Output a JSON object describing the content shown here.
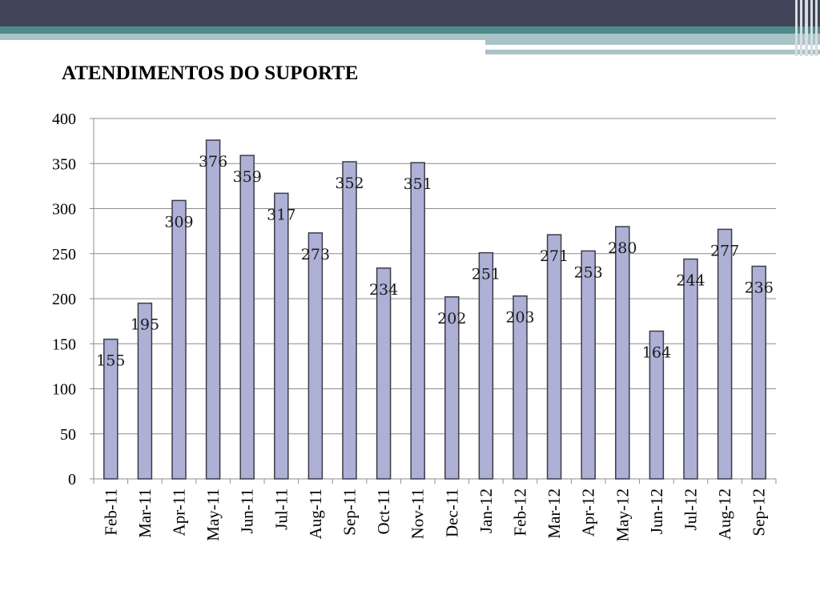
{
  "slide": {
    "title": "ATENDIMENTOS DO SUPORTE"
  },
  "colors": {
    "header_dark": "#42445a",
    "header_teal": "#4e8a88",
    "header_light": "#a9c3c8",
    "bar_fill": "#aeb0d6",
    "bar_stroke": "#3c3c48",
    "grid": "#8c8c8c"
  },
  "chart_data": {
    "type": "bar",
    "title": "ATENDIMENTOS DO SUPORTE",
    "xlabel": "",
    "ylabel": "",
    "ylim": [
      0,
      400
    ],
    "yticks": [
      0,
      50,
      100,
      150,
      200,
      250,
      300,
      350,
      400
    ],
    "grid": true,
    "legend": "none",
    "categories": [
      "Feb-11",
      "Mar-11",
      "Apr-11",
      "May-11",
      "Jun-11",
      "Jul-11",
      "Aug-11",
      "Sep-11",
      "Oct-11",
      "Nov-11",
      "Dec-11",
      "Jan-12",
      "Feb-12",
      "Mar-12",
      "Apr-12",
      "May-12",
      "Jun-12",
      "Jul-12",
      "Aug-12",
      "Sep-12"
    ],
    "values": [
      155,
      195,
      309,
      376,
      359,
      317,
      273,
      352,
      234,
      351,
      202,
      251,
      203,
      271,
      253,
      280,
      164,
      244,
      277,
      236
    ]
  }
}
